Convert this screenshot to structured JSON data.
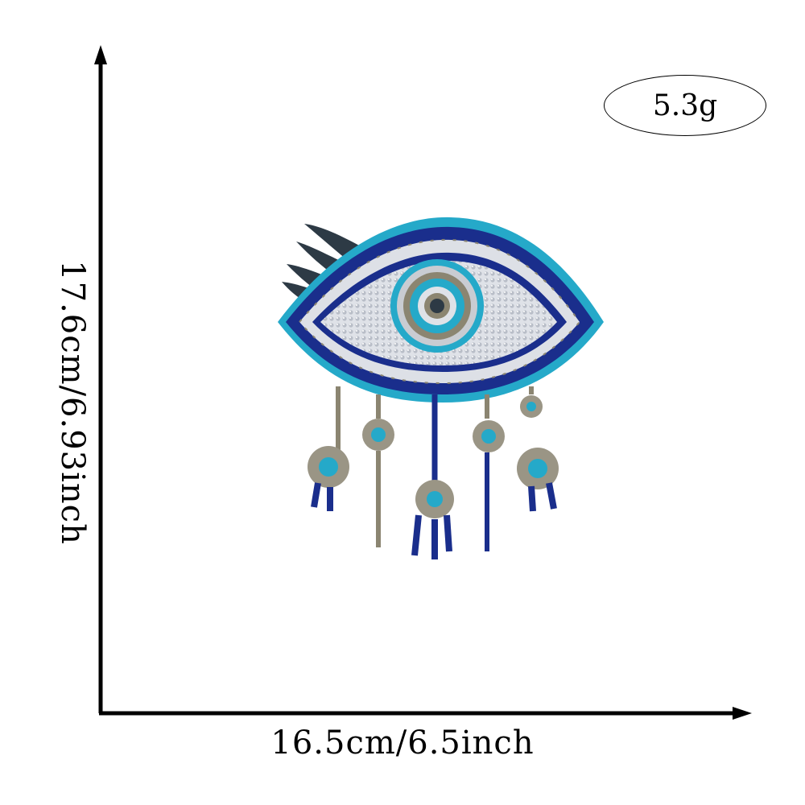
{
  "dimensions": {
    "width_label": "16.5cm/6.5inch",
    "height_label": "17.6cm/6.93inch"
  },
  "weight": {
    "label": "5.3g"
  },
  "product": {
    "description_icon": "evil-eye-sequin-patch-icon",
    "colors": {
      "navy": "#1a2e8c",
      "turquoise": "#25a9c9",
      "silver": "#c9ccd2",
      "bronze": "#8b8571",
      "charcoal": "#2d3a45"
    }
  }
}
